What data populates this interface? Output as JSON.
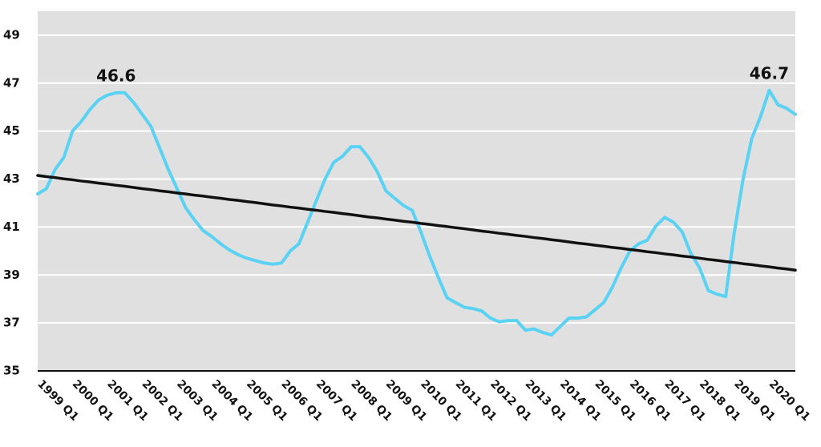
{
  "chart_data": {
    "type": "line",
    "categories": [
      "1999 Q1",
      null,
      null,
      null,
      "2000 Q1",
      null,
      null,
      null,
      "2001 Q1",
      null,
      null,
      null,
      "2002 Q1",
      null,
      null,
      null,
      "2003 Q1",
      null,
      null,
      null,
      "2004 Q1",
      null,
      null,
      null,
      "2005 Q1",
      null,
      null,
      null,
      "2006 Q1",
      null,
      null,
      null,
      "2007 Q1",
      null,
      null,
      null,
      "2008 Q1",
      null,
      null,
      null,
      "2009 Q1",
      null,
      null,
      null,
      "2010 Q1",
      null,
      null,
      null,
      "2011 Q1",
      null,
      null,
      null,
      "2012 Q1",
      null,
      null,
      null,
      "2013 Q1",
      null,
      null,
      null,
      "2014 Q1",
      null,
      null,
      null,
      "2015 Q1",
      null,
      null,
      null,
      "2016 Q1",
      null,
      null,
      null,
      "2017 Q1",
      null,
      null,
      null,
      "2018 Q1",
      null,
      null,
      null,
      "2019 Q1",
      null,
      null,
      null,
      "2020 Q1",
      null,
      null,
      null
    ],
    "series": [
      {
        "color": "#5ad2f4",
        "width": 4,
        "values": [
          42.38,
          42.6,
          43.4,
          43.9,
          45.0,
          45.4,
          45.9,
          46.3,
          46.5,
          46.6,
          46.6,
          46.2,
          45.7,
          45.2,
          44.3,
          43.4,
          42.6,
          41.8,
          41.3,
          40.85,
          40.6,
          40.3,
          40.05,
          39.85,
          39.7,
          39.6,
          39.5,
          39.45,
          39.5,
          40.0,
          40.3,
          41.2,
          42.1,
          43.0,
          43.7,
          43.95,
          44.35,
          44.35,
          43.9,
          43.3,
          42.5,
          42.2,
          41.9,
          41.7,
          40.8,
          39.8,
          38.9,
          38.05,
          37.85,
          37.65,
          37.6,
          37.5,
          37.2,
          37.05,
          37.1,
          37.1,
          36.7,
          36.75,
          36.6,
          36.5,
          36.85,
          37.2,
          37.2,
          37.25,
          37.55,
          37.85,
          38.5,
          39.3,
          40.0,
          40.3,
          40.45,
          41.05,
          41.4,
          41.2,
          40.8,
          39.9,
          39.3,
          38.35,
          38.2,
          38.1,
          40.8,
          43.0,
          44.7,
          45.6,
          46.7,
          46.1,
          45.95,
          45.7
        ],
        "value_labels": [
          null,
          null,
          null,
          null,
          null,
          null,
          null,
          null,
          null,
          "46.6",
          null,
          null,
          null,
          null,
          null,
          null,
          null,
          null,
          null,
          null,
          null,
          null,
          null,
          null,
          null,
          null,
          null,
          null,
          null,
          null,
          null,
          null,
          null,
          null,
          null,
          null,
          null,
          null,
          null,
          null,
          null,
          null,
          null,
          null,
          null,
          null,
          null,
          null,
          null,
          null,
          null,
          null,
          null,
          null,
          null,
          null,
          null,
          null,
          null,
          null,
          null,
          null,
          null,
          null,
          null,
          null,
          null,
          null,
          null,
          null,
          null,
          null,
          null,
          null,
          null,
          null,
          null,
          null,
          null,
          null,
          null,
          null,
          null,
          null,
          "46.7",
          null,
          null,
          null
        ]
      },
      {
        "color": "#111111",
        "width": 3.5,
        "values": [
          43.15,
          43.1,
          43.06,
          43.01,
          42.97,
          42.92,
          42.88,
          42.83,
          42.79,
          42.74,
          42.7,
          42.65,
          42.6,
          42.56,
          42.51,
          42.47,
          42.42,
          42.38,
          42.33,
          42.29,
          42.24,
          42.2,
          42.15,
          42.11,
          42.06,
          42.02,
          41.97,
          41.92,
          41.88,
          41.83,
          41.79,
          41.74,
          41.7,
          41.65,
          41.61,
          41.56,
          41.52,
          41.47,
          41.42,
          41.38,
          41.33,
          41.29,
          41.24,
          41.2,
          41.15,
          41.11,
          41.06,
          41.02,
          40.97,
          40.93,
          40.88,
          40.83,
          40.79,
          40.74,
          40.7,
          40.65,
          40.61,
          40.56,
          40.52,
          40.47,
          40.43,
          40.38,
          40.33,
          40.29,
          40.24,
          40.2,
          40.15,
          40.11,
          40.06,
          40.02,
          39.97,
          39.93,
          39.88,
          39.84,
          39.79,
          39.75,
          39.7,
          39.65,
          39.61,
          39.56,
          39.52,
          39.47,
          39.43,
          39.38,
          39.34,
          39.29,
          39.25,
          39.2
        ]
      }
    ],
    "ylim": [
      35,
      50
    ],
    "yticks": [
      35,
      37,
      39,
      41,
      43,
      45,
      47,
      49
    ],
    "grid": true,
    "background": "#e0e0e0"
  }
}
